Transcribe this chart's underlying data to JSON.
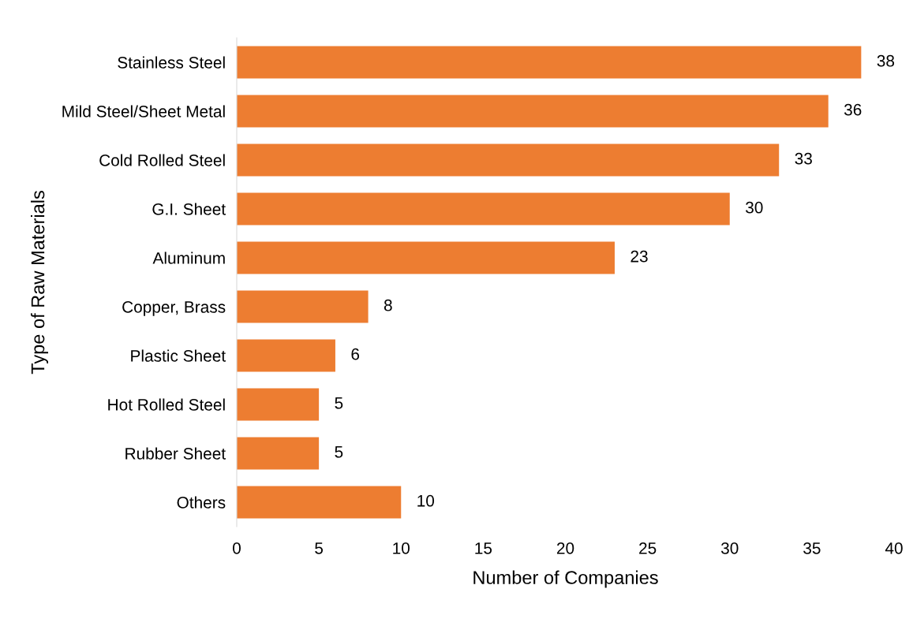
{
  "chart_data": {
    "type": "bar",
    "orientation": "horizontal",
    "xlabel": "Number of Companies",
    "ylabel": "Type of Raw Materials",
    "categories": [
      "Stainless Steel",
      "Mild Steel/Sheet Metal",
      "Cold Rolled Steel",
      "G.I. Sheet",
      "Aluminum",
      "Copper, Brass",
      "Plastic Sheet",
      "Hot Rolled Steel",
      "Rubber Sheet",
      "Others"
    ],
    "values": [
      38,
      36,
      33,
      30,
      23,
      8,
      6,
      5,
      5,
      10
    ],
    "color": "#ed7d31",
    "xlim": [
      0,
      40
    ],
    "xticks": [
      0,
      5,
      10,
      15,
      20,
      25,
      30,
      35,
      40
    ],
    "grid": false,
    "legend": false,
    "data_labels": true
  }
}
